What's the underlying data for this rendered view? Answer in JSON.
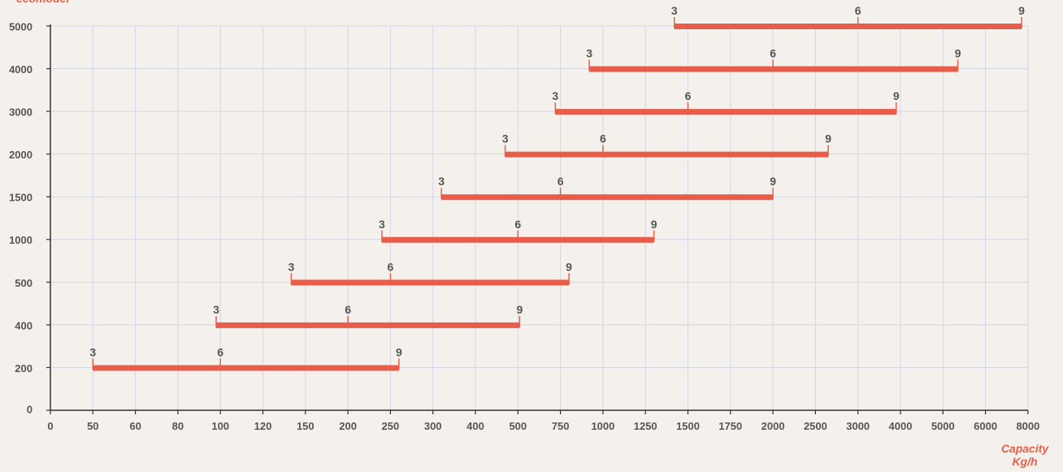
{
  "chart_data": {
    "type": "range-bar",
    "ylabel": "ecomodel",
    "xlabel_line1": "Capacity",
    "xlabel_line2": "Kg/h",
    "x_ticks": [
      "0",
      "50",
      "60",
      "80",
      "100",
      "120",
      "150",
      "200",
      "250",
      "300",
      "400",
      "500",
      "750",
      "1000",
      "1250",
      "1500",
      "1750",
      "2000",
      "2500",
      "3000",
      "4000",
      "5000",
      "6000",
      "8000"
    ],
    "y_ticks": [
      "0",
      "200",
      "400",
      "500",
      "1000",
      "1500",
      "2000",
      "3000",
      "4000",
      "5000"
    ],
    "grid": true,
    "series": [
      {
        "model": "200",
        "points": [
          {
            "label": "3",
            "x": 50
          },
          {
            "label": "6",
            "x": 100
          },
          {
            "label": "9",
            "x": 260
          }
        ]
      },
      {
        "model": "400",
        "points": [
          {
            "label": "3",
            "x": 98
          },
          {
            "label": "6",
            "x": 200
          },
          {
            "label": "9",
            "x": 510
          }
        ]
      },
      {
        "model": "500",
        "points": [
          {
            "label": "3",
            "x": 140
          },
          {
            "label": "6",
            "x": 250
          },
          {
            "label": "9",
            "x": 800
          }
        ]
      },
      {
        "model": "1000",
        "points": [
          {
            "label": "3",
            "x": 240
          },
          {
            "label": "6",
            "x": 500
          },
          {
            "label": "9",
            "x": 1300
          }
        ]
      },
      {
        "model": "1500",
        "points": [
          {
            "label": "3",
            "x": 320
          },
          {
            "label": "6",
            "x": 750
          },
          {
            "label": "9",
            "x": 2000
          }
        ]
      },
      {
        "model": "2000",
        "points": [
          {
            "label": "3",
            "x": 470
          },
          {
            "label": "6",
            "x": 1000
          },
          {
            "label": "9",
            "x": 2650
          }
        ]
      },
      {
        "model": "3000",
        "points": [
          {
            "label": "3",
            "x": 720
          },
          {
            "label": "6",
            "x": 1500
          },
          {
            "label": "9",
            "x": 3900
          }
        ]
      },
      {
        "model": "4000",
        "points": [
          {
            "label": "3",
            "x": 920
          },
          {
            "label": "6",
            "x": 2000
          },
          {
            "label": "9",
            "x": 5350
          }
        ]
      },
      {
        "model": "5000",
        "points": [
          {
            "label": "3",
            "x": 1420
          },
          {
            "label": "6",
            "x": 3000
          },
          {
            "label": "9",
            "x": 7700
          }
        ]
      }
    ],
    "colors": {
      "bar": "#e85d4a",
      "grid": "#d4d4ea",
      "axis": "#333333",
      "text": "#555555",
      "accent": "#e4604e"
    }
  }
}
